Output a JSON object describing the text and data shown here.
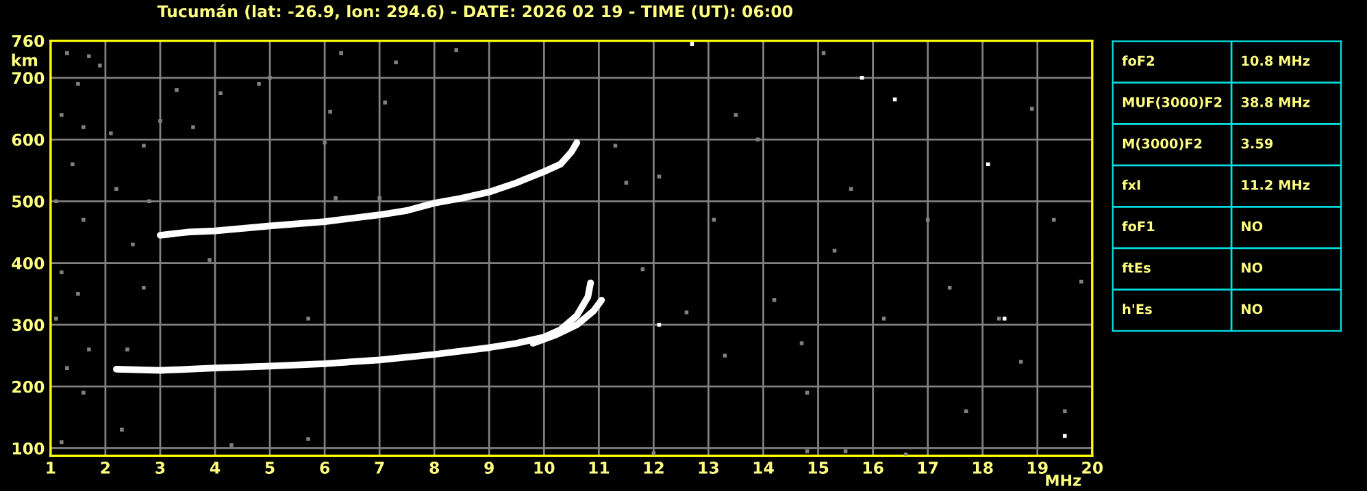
{
  "chart_data": [
    {
      "type": "scatter",
      "title": "Tucumán (lat: -26.9, lon: 294.6) - DATE: 2026 02 19 - TIME (UT): 06:00",
      "xlabel": "MHz",
      "ylabel": "km",
      "xlim": [
        1,
        20
      ],
      "ylim": [
        88,
        760
      ],
      "xticks": [
        1,
        2,
        3,
        4,
        5,
        6,
        7,
        8,
        9,
        10,
        11,
        12,
        13,
        14,
        15,
        16,
        17,
        18,
        19,
        20
      ],
      "yticks": [
        100,
        200,
        300,
        400,
        500,
        600,
        700,
        760
      ],
      "grid": true,
      "legend": false,
      "series": [
        {
          "type": "scatter",
          "color": "#808080",
          "marker": "square",
          "x": [
            1.3,
            1.7,
            1.5,
            1.2,
            1.6,
            1.4,
            1.1,
            1.6,
            1.2,
            1.5,
            1.1,
            1.7,
            1.3,
            1.6,
            1.2,
            1.9,
            2.1,
            2.2,
            2.5,
            2.7,
            2.4,
            2.3,
            2.7,
            2.8,
            3.0,
            3.3,
            3.6,
            3.9,
            4.1,
            4.3,
            4.8,
            5.0,
            5.7,
            5.7,
            6.1,
            6.0,
            6.2,
            6.3,
            7.1,
            7.3,
            7.0,
            8.4,
            11.3,
            11.5,
            11.8,
            12.1,
            12.6,
            13.1,
            13.3,
            13.5,
            13.9,
            14.2,
            14.7,
            14.8,
            15.1,
            15.3,
            15.6,
            16.2,
            16.6,
            17.0,
            17.4,
            17.7,
            18.3,
            18.7,
            18.9,
            19.3,
            19.5,
            19.8,
            12.0,
            14.8,
            15.5
          ],
          "values": [
            740,
            735,
            690,
            640,
            620,
            560,
            500,
            470,
            385,
            350,
            310,
            260,
            230,
            190,
            110,
            720,
            610,
            520,
            430,
            360,
            260,
            130,
            590,
            500,
            630,
            680,
            620,
            405,
            675,
            105,
            690,
            700,
            310,
            115,
            645,
            595,
            505,
            740,
            660,
            725,
            505,
            745,
            590,
            530,
            390,
            540,
            320,
            470,
            250,
            640,
            600,
            340,
            270,
            190,
            740,
            420,
            520,
            310,
            90,
            470,
            360,
            160,
            310,
            240,
            650,
            470,
            160,
            370,
            92,
            95,
            95
          ]
        },
        {
          "type": "scatter",
          "color": "#ffffff",
          "marker": "square",
          "x": [
            12.1,
            15.8,
            16.4,
            18.1,
            18.4,
            19.5,
            12.7
          ],
          "values": [
            300,
            700,
            665,
            560,
            310,
            120,
            755
          ]
        },
        {
          "type": "line",
          "color": "#ffffff",
          "line_style": "solid",
          "x": [
            3.0,
            3.5,
            4,
            5,
            6,
            7,
            7.5,
            8,
            8.5,
            9,
            9.5,
            10,
            10.3,
            10.5,
            10.6
          ],
          "values": [
            445,
            450,
            452,
            460,
            467,
            478,
            485,
            497,
            505,
            515,
            530,
            548,
            560,
            580,
            595
          ]
        },
        {
          "type": "line",
          "color": "#ffffff",
          "line_style": "solid",
          "x": [
            2.2,
            3,
            4,
            5,
            6,
            7,
            8,
            9,
            9.5,
            10,
            10.3,
            10.6,
            10.8,
            10.85
          ],
          "values": [
            228,
            226,
            230,
            233,
            237,
            243,
            252,
            263,
            270,
            280,
            292,
            315,
            345,
            368
          ]
        },
        {
          "type": "line",
          "color": "#ffffff",
          "line_style": "solid",
          "x": [
            9.8,
            10.2,
            10.6,
            10.9,
            11.05
          ],
          "values": [
            270,
            283,
            300,
            322,
            340
          ]
        }
      ]
    },
    {
      "type": "other",
      "annotations": [
        "foF2",
        "10.8 MHz",
        "MUF(3000)F2",
        "38.8 MHz",
        "M(3000)F2",
        "3.59",
        "fxI",
        "11.2 MHz",
        "foF1",
        "NO",
        "ftEs",
        "NO",
        "h'Es",
        "NO"
      ]
    }
  ]
}
